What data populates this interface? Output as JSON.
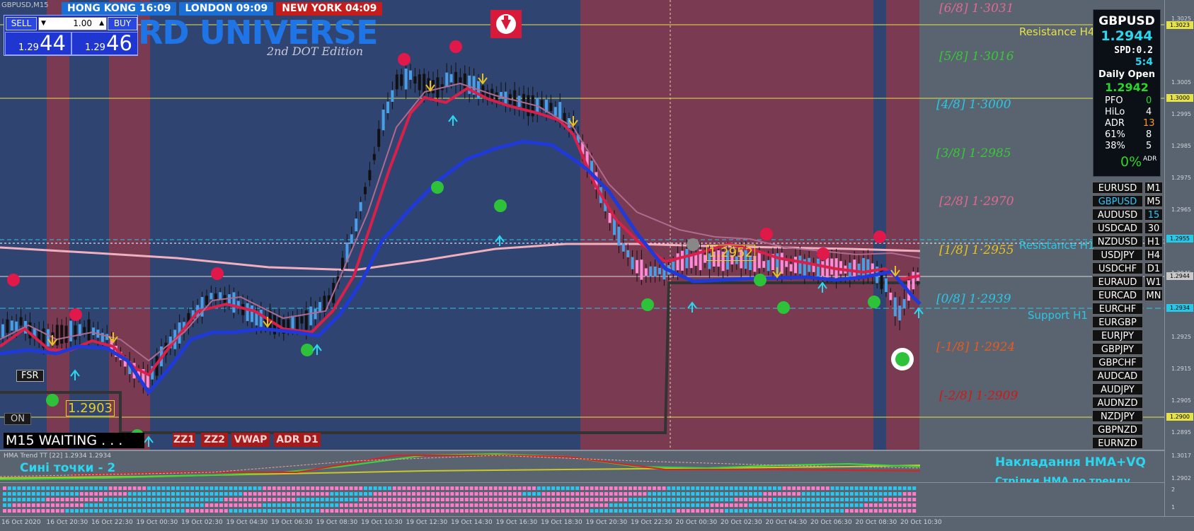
{
  "window": {
    "symbol_title": "GBPUSD,M15",
    "brand_title": "RD UNIVERSE",
    "brand_subtitle": "2nd DOT Edition"
  },
  "clocks": [
    {
      "label": "HONG KONG 16:09",
      "color": "#1a6fd6"
    },
    {
      "label": "LONDON  09:09",
      "color": "#1a6fd6"
    },
    {
      "label": "NEW YORK  04:09",
      "color": "#c61c1c"
    }
  ],
  "trade_panel": {
    "sell_label": "SELL",
    "buy_label": "BUY",
    "lot_value": "1.00",
    "bid_prefix": "1.29",
    "bid_big": "44",
    "ask_prefix": "1.29",
    "ask_big": "46"
  },
  "fib_levels": [
    {
      "label": "[6/8]  1·3031",
      "color": "#e06a8e"
    },
    {
      "label": "[5/8]  1·3016",
      "color": "#38c838"
    },
    {
      "label": "[4/8]  1·3000",
      "color": "#29c7e6"
    },
    {
      "label": "[3/8]  1·2985",
      "color": "#38c838"
    },
    {
      "label": "[2/8]  1·2970",
      "color": "#e06a8e"
    },
    {
      "label": "[1/8]  1·2955",
      "color": "#e8c020"
    },
    {
      "label": "[0/8]  1·2939",
      "color": "#29c7e6"
    },
    {
      "label": "[-1/8]  1·2924",
      "color": "#e85a20"
    },
    {
      "label": "[-2/8]  1·2909",
      "color": "#d01818"
    }
  ],
  "sr_labels": {
    "resistance_h4": "Resistance H4",
    "resistance_h1": "Resistance H1",
    "support_h1": "Support H1"
  },
  "chart_callouts": {
    "price_1": "1.2952",
    "price_2": "1.2903",
    "fsr": "FSR",
    "on": "ON",
    "status": "M15  WAITING . . ."
  },
  "tag_buttons": [
    "ZZ1",
    "ZZ2",
    "VWAP",
    "ADR D1"
  ],
  "info_box": {
    "pair": "GBPUSD",
    "price": "1.2944",
    "spread": "SPD:0.2",
    "ratio": "5:4",
    "daily_open_label": "Daily Open",
    "daily_open_value": "1.2942",
    "stats": [
      {
        "name": "PFO",
        "value": "0",
        "color": "#2bd62b"
      },
      {
        "name": "HiLo",
        "value": "4",
        "color": "#ffffff"
      },
      {
        "name": "ADR",
        "value": "13",
        "color": "#ff9a1a"
      },
      {
        "name": "61%",
        "value": "8",
        "color": "#ffffff"
      },
      {
        "name": "38%",
        "value": "5",
        "color": "#ffffff"
      }
    ],
    "adr_pct": "0%",
    "adr_suffix": "ADR"
  },
  "pairs": [
    {
      "name": "EURUSD",
      "tf": "M1",
      "active": false
    },
    {
      "name": "GBPUSD",
      "tf": "M5",
      "active": true
    },
    {
      "name": "AUDUSD",
      "tf": "15",
      "active": false
    },
    {
      "name": "USDCAD",
      "tf": "30",
      "active": false
    },
    {
      "name": "NZDUSD",
      "tf": "H1",
      "active": false
    },
    {
      "name": "USDJPY",
      "tf": "H4",
      "active": false
    },
    {
      "name": "USDCHF",
      "tf": "D1",
      "active": false
    },
    {
      "name": "EURAUD",
      "tf": "W1",
      "active": false
    },
    {
      "name": "EURCAD",
      "tf": "MN",
      "active": false
    },
    {
      "name": "EURCHF",
      "tf": "",
      "active": false
    },
    {
      "name": "EURGBP",
      "tf": "",
      "active": false
    },
    {
      "name": "EURJPY",
      "tf": "",
      "active": false
    },
    {
      "name": "GBPJPY",
      "tf": "",
      "active": false
    },
    {
      "name": "GBPCHF",
      "tf": "",
      "active": false
    },
    {
      "name": "AUDCAD",
      "tf": "",
      "active": false
    },
    {
      "name": "AUDJPY",
      "tf": "",
      "active": false
    },
    {
      "name": "AUDNZD",
      "tf": "",
      "active": false
    },
    {
      "name": "NZDJPY",
      "tf": "",
      "active": false
    },
    {
      "name": "GBPNZD",
      "tf": "",
      "active": false
    },
    {
      "name": "EURNZD",
      "tf": "",
      "active": false
    }
  ],
  "price_axis": [
    {
      "label": "1.3025"
    },
    {
      "label": "1.3005"
    },
    {
      "label": "1.2995"
    },
    {
      "label": "1.2985"
    },
    {
      "label": "1.2975"
    },
    {
      "label": "1.2965"
    },
    {
      "label": "1.2945"
    },
    {
      "label": "1.2925"
    },
    {
      "label": "1.2915"
    },
    {
      "label": "1.2905"
    },
    {
      "label": "1.2895"
    }
  ],
  "price_tags": [
    {
      "label": "1.3023",
      "color": "#e6e24a"
    },
    {
      "label": "1.3000",
      "color": "#e6e24a"
    },
    {
      "label": "1.2955",
      "color": "#29c7e6"
    },
    {
      "label": "1.2944",
      "color": "#c8c8c8"
    },
    {
      "label": "1.2934",
      "color": "#29c7e6"
    },
    {
      "label": "1.2900",
      "color": "#e6e24a"
    }
  ],
  "sub_axis": [
    "1.3017",
    "1.2902",
    "2",
    "1"
  ],
  "sub_indicator": {
    "title": "HMA Trend TT [22] 1.2934 1.2934",
    "blue_dots": "Сині точки - 2",
    "overlay_title": "Накладання HMA+VQ",
    "overlay_sub": "Стрілки HMA по тренду"
  },
  "time_axis": [
    "16 Oct 2020",
    "16 Oct 20:30",
    "16 Oct 22:30",
    "19 Oct 00:30",
    "19 Oct 02:30",
    "19 Oct 04:30",
    "19 Oct 06:30",
    "19 Oct 08:30",
    "19 Oct 10:30",
    "19 Oct 12:30",
    "19 Oct 14:30",
    "19 Oct 16:30",
    "19 Oct 18:30",
    "19 Oct 20:30",
    "19 Oct 22:30",
    "20 Oct 00:30",
    "20 Oct 02:30",
    "20 Oct 04:30",
    "20 Oct 06:30",
    "20 Oct 08:30",
    "20 Oct 10:30"
  ],
  "colors": {
    "bull_candle": "#4a9ee6",
    "bear_candle": "#ff8ad8",
    "blue_line": "#1f3ad9",
    "red_line": "#d8204a",
    "pink_ma": "#f0b0c0",
    "band_blue": "#2f4470",
    "band_red": "#7a3a52",
    "green_dot": "#2ec23a",
    "red_dot": "#e0194a"
  }
}
